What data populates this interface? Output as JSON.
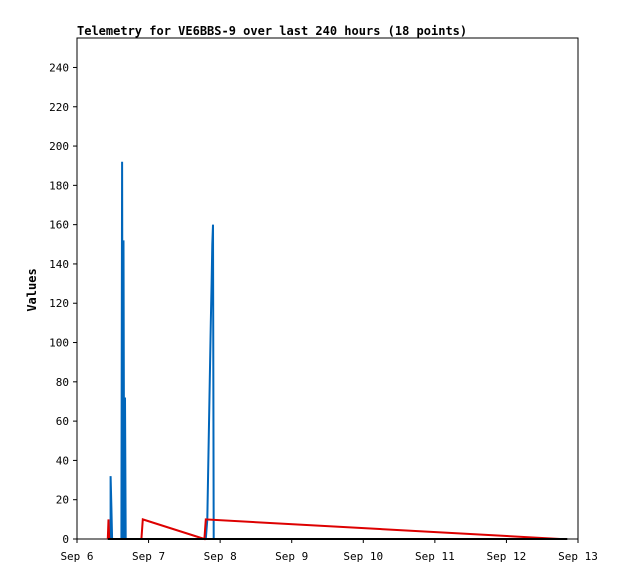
{
  "chart_data": {
    "type": "line",
    "title": "Telemetry for VE6BBS-9 over last 240 hours (18 points)",
    "xlabel": "",
    "ylabel": "Values",
    "x_ticks": [
      "Sep 6",
      "Sep 7",
      "Sep 8",
      "Sep 9",
      "Sep 10",
      "Sep 11",
      "Sep 12",
      "Sep 13"
    ],
    "x_range_days": [
      6,
      13
    ],
    "ylim": [
      0,
      255
    ],
    "y_ticks": [
      0,
      20,
      40,
      60,
      80,
      100,
      120,
      140,
      160,
      180,
      200,
      220,
      240
    ],
    "grid": false,
    "legend": "none",
    "series": [
      {
        "color": "#0066bb",
        "points": [
          [
            6.47,
            0
          ],
          [
            6.47,
            32
          ],
          [
            6.48,
            16
          ],
          [
            6.49,
            0
          ],
          [
            6.62,
            0
          ],
          [
            6.63,
            192
          ],
          [
            6.64,
            0
          ],
          [
            6.65,
            152
          ],
          [
            6.66,
            0
          ],
          [
            6.67,
            72
          ],
          [
            6.68,
            0
          ],
          [
            7.8,
            0
          ],
          [
            7.82,
            10
          ],
          [
            7.83,
            30
          ],
          [
            7.84,
            50
          ],
          [
            7.85,
            70
          ],
          [
            7.86,
            90
          ],
          [
            7.87,
            110
          ],
          [
            7.88,
            130
          ],
          [
            7.89,
            150
          ],
          [
            7.9,
            160
          ],
          [
            7.91,
            0
          ]
        ]
      },
      {
        "color": "#dd0000",
        "points": [
          [
            6.43,
            0
          ],
          [
            6.44,
            10
          ],
          [
            6.45,
            0
          ],
          [
            6.9,
            0
          ],
          [
            6.92,
            10
          ],
          [
            7.78,
            0
          ],
          [
            7.8,
            10
          ],
          [
            12.75,
            0
          ]
        ]
      },
      {
        "color": "#000000",
        "points": [
          [
            6.43,
            0
          ],
          [
            12.85,
            0
          ]
        ]
      }
    ]
  }
}
